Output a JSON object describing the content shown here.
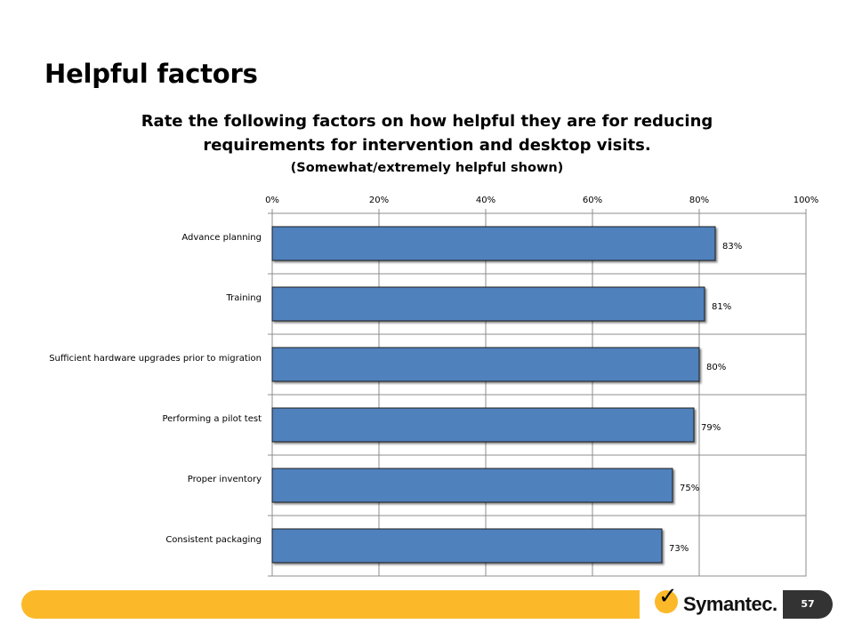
{
  "slide": {
    "title": "Helpful factors",
    "page_number": "57"
  },
  "logo": {
    "text": "Symantec."
  },
  "colors": {
    "bar": "#4F81BD",
    "footer_bar": "#FBB92A",
    "page_badge": "#333333"
  },
  "chart_data": {
    "type": "bar",
    "orientation": "horizontal",
    "title_lines": [
      "Rate the following factors on how helpful they are for reducing",
      "requirements for intervention and desktop visits.",
      "(Somewhat/extremely helpful shown)"
    ],
    "categories": [
      "Advance planning",
      "Training",
      "Sufficient hardware upgrades prior to migration",
      "Performing a pilot test",
      "Proper inventory",
      "Consistent packaging"
    ],
    "values": [
      83,
      81,
      80,
      79,
      75,
      73
    ],
    "data_labels": [
      "83%",
      "81%",
      "80%",
      "79%",
      "75%",
      "73%"
    ],
    "x_ticks": [
      "0%",
      "20%",
      "40%",
      "60%",
      "80%",
      "100%"
    ],
    "xlim": [
      0,
      100
    ],
    "x_axis_position": "top",
    "grid": true,
    "legend": "none"
  }
}
